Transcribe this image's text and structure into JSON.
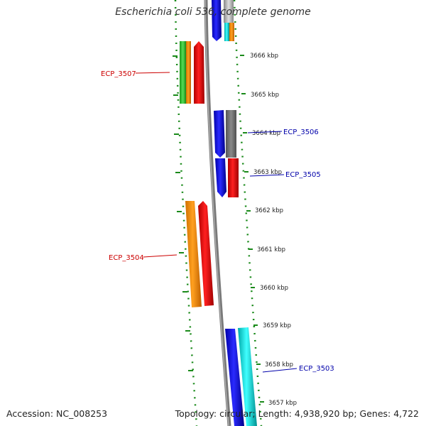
{
  "title": "Escherichia coli 536, complete genome",
  "accession": "Accession: NC_008253",
  "summary": "Topology: circular; Length: 4,938,920 bp; Genes: 4,722",
  "colors": {
    "tick_green": "#1a8a1a",
    "backbone": "#808080",
    "label_red": "#cc0000",
    "label_blue": "#0000aa"
  },
  "kbp_labels": [
    "3666 kbp",
    "3665 kbp",
    "3664 kbp",
    "3663 kbp",
    "3662 kbp",
    "3661 kbp",
    "3660 kbp",
    "3659 kbp",
    "3658 kbp",
    "3657 kbp"
  ],
  "gene_labels": [
    "ECP_3507",
    "ECP_3506",
    "ECP_3505",
    "ECP_3504",
    "ECP_3503"
  ]
}
